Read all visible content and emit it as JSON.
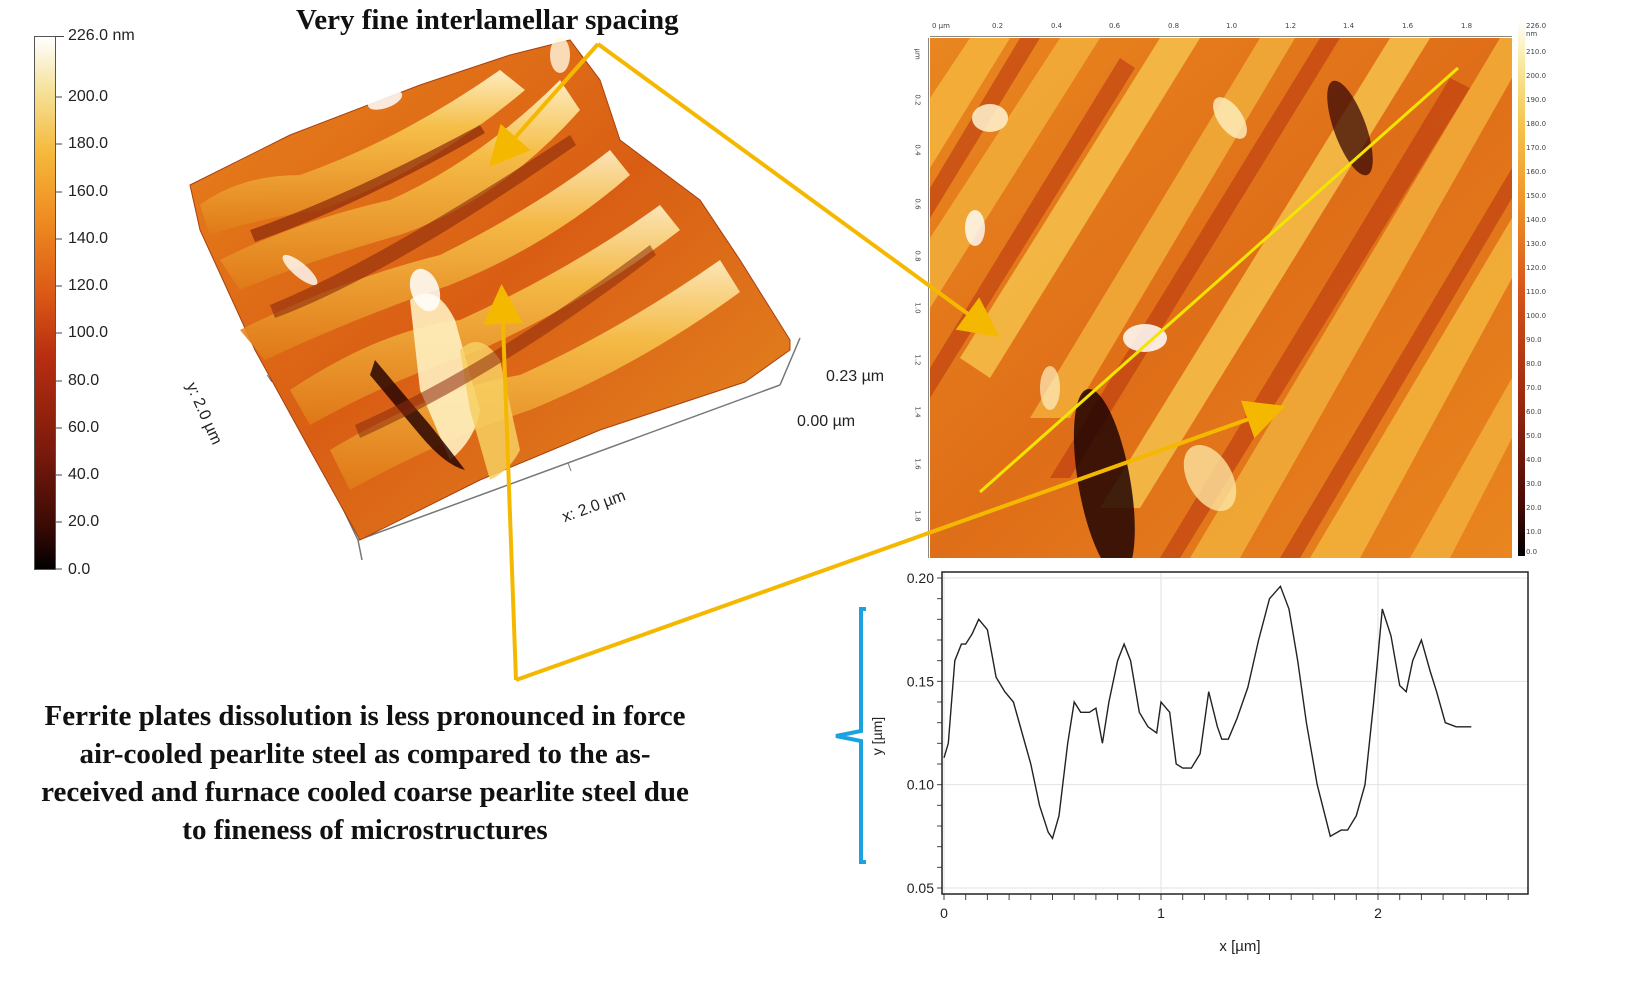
{
  "colorbar": {
    "top_label": "226.0 nm",
    "ticks": [
      "200.0",
      "180.0",
      "160.0",
      "140.0",
      "120.0",
      "100.0",
      "80.0",
      "60.0",
      "40.0",
      "20.0",
      "0.0"
    ]
  },
  "surface3d": {
    "title": "Very fine interlamellar spacing",
    "y_axis": "y: 2.0 µm",
    "x_axis": "x: 2.0 µm",
    "z_top": "0.23 µm",
    "z_bottom": "0.00 µm"
  },
  "afm_map": {
    "top_ticks": [
      "0 µm",
      "0.2",
      "0.4",
      "0.6",
      "0.8",
      "1.0",
      "1.2",
      "1.4",
      "1.6",
      "1.8"
    ],
    "left_ticks": [
      "µm",
      "0.2",
      "0.4",
      "0.6",
      "0.8",
      "1.0",
      "1.2",
      "1.4",
      "1.6",
      "1.8"
    ],
    "scale_ticks": [
      "226.0 nm",
      "210.0",
      "200.0",
      "190.0",
      "180.0",
      "170.0",
      "160.0",
      "150.0",
      "140.0",
      "130.0",
      "120.0",
      "110.0",
      "100.0",
      "90.0",
      "80.0",
      "70.0",
      "60.0",
      "50.0",
      "40.0",
      "30.0",
      "20.0",
      "10.0",
      "0.0"
    ]
  },
  "annotation": {
    "lines": [
      "Ferrite plates dissolution is less pronounced in force",
      "air-cooled pearlite steel as compared to the as-",
      "received and furnace cooled coarse pearlite steel due",
      "to fineness of microstructures"
    ]
  },
  "colors": {
    "arrow": "#f5b800",
    "profile_line": "#f2e600",
    "bracket": "#1aa3e0"
  },
  "chart_data": {
    "type": "line",
    "xlabel": "x [µm]",
    "ylabel": "y [µm]",
    "xlim": [
      0,
      2.7
    ],
    "ylim": [
      0.05,
      0.2
    ],
    "x_ticks": [
      "0",
      "1",
      "2"
    ],
    "y_ticks": [
      "0.05",
      "0.10",
      "0.15",
      "0.20"
    ],
    "x": [
      0.0,
      0.02,
      0.05,
      0.08,
      0.1,
      0.13,
      0.16,
      0.2,
      0.24,
      0.28,
      0.32,
      0.36,
      0.4,
      0.44,
      0.48,
      0.5,
      0.53,
      0.57,
      0.6,
      0.63,
      0.67,
      0.7,
      0.73,
      0.76,
      0.8,
      0.83,
      0.86,
      0.9,
      0.94,
      0.98,
      1.0,
      1.04,
      1.07,
      1.1,
      1.14,
      1.18,
      1.22,
      1.26,
      1.28,
      1.31,
      1.35,
      1.4,
      1.45,
      1.5,
      1.55,
      1.59,
      1.63,
      1.67,
      1.72,
      1.78,
      1.83,
      1.86,
      1.9,
      1.94,
      1.98,
      2.02,
      2.06,
      2.1,
      2.13,
      2.16,
      2.2,
      2.24,
      2.27,
      2.31,
      2.36,
      2.4,
      2.43
    ],
    "values": [
      0.113,
      0.12,
      0.16,
      0.168,
      0.168,
      0.173,
      0.18,
      0.175,
      0.152,
      0.145,
      0.14,
      0.125,
      0.11,
      0.09,
      0.077,
      0.074,
      0.085,
      0.12,
      0.14,
      0.135,
      0.135,
      0.137,
      0.12,
      0.14,
      0.16,
      0.168,
      0.16,
      0.135,
      0.128,
      0.125,
      0.14,
      0.135,
      0.11,
      0.108,
      0.108,
      0.115,
      0.145,
      0.128,
      0.122,
      0.122,
      0.132,
      0.147,
      0.17,
      0.19,
      0.196,
      0.185,
      0.16,
      0.13,
      0.1,
      0.075,
      0.078,
      0.078,
      0.085,
      0.1,
      0.14,
      0.185,
      0.172,
      0.148,
      0.145,
      0.16,
      0.17,
      0.155,
      0.145,
      0.13,
      0.128,
      0.128,
      0.128
    ]
  }
}
